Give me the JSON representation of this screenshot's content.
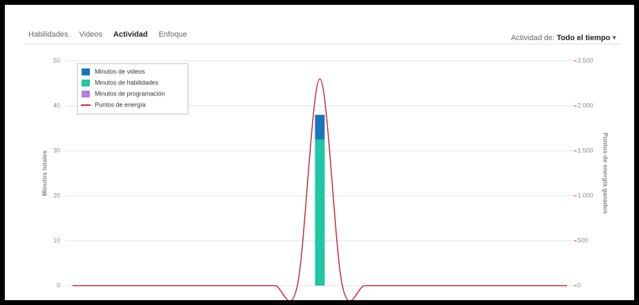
{
  "header": {
    "tabs": [
      "Habilidades",
      "Videos",
      "Actividad",
      "Enfoque"
    ],
    "filter_label": "Actividad de:",
    "filter_value": "Todo el tiempo"
  },
  "chart_data": {
    "type": "stacked-bar-line",
    "y_label": "Minutos totales",
    "y2_label": "Puntos de energía ganados",
    "categories": [
      null,
      null,
      null,
      null,
      null,
      null,
      null,
      null,
      null,
      null,
      null,
      null,
      null,
      null,
      null,
      null,
      null,
      null,
      null,
      null,
      null,
      null,
      null
    ],
    "series": [
      {
        "name": "Minutos de videos",
        "color": "#1c75bc",
        "values": [
          0,
          0,
          0,
          0,
          0,
          0,
          0,
          0,
          0,
          0,
          0,
          5.5,
          0,
          0,
          0,
          0,
          0,
          0,
          0,
          0,
          0,
          0,
          0
        ]
      },
      {
        "name": "Minutos de habilidades",
        "color": "#1fc7a4",
        "values": [
          0,
          0,
          0,
          0,
          0,
          0,
          0,
          0,
          0,
          0,
          0,
          32.5,
          0,
          0,
          0,
          0,
          0,
          0,
          0,
          0,
          0,
          0,
          0
        ]
      },
      {
        "name": "Minutos de programación",
        "color": "#b57de0",
        "values": [
          0,
          0,
          0,
          0,
          0,
          0,
          0,
          0,
          0,
          0,
          0,
          0,
          0,
          0,
          0,
          0,
          0,
          0,
          0,
          0,
          0,
          0,
          0
        ]
      },
      {
        "name": "Puntos de energía",
        "color": "#c0283f",
        "axis": "y2",
        "values": [
          0,
          0,
          0,
          0,
          0,
          0,
          0,
          0,
          0,
          0,
          0,
          2300,
          0,
          0,
          0,
          0,
          0,
          0,
          0,
          0,
          0,
          0,
          0
        ]
      }
    ],
    "ylim": [
      0,
      50
    ],
    "yticks": [
      0,
      10,
      20,
      30,
      40,
      50
    ],
    "y2lim": [
      0,
      2500
    ],
    "y2ticks": [
      0,
      500,
      {
        "value": 1000,
        "label": "1.000"
      },
      {
        "value": 1500,
        "label": "1.500"
      },
      {
        "value": 2000,
        "label": "2.000"
      },
      {
        "value": 2500,
        "label": "2.500"
      }
    ],
    "grid": true
  }
}
